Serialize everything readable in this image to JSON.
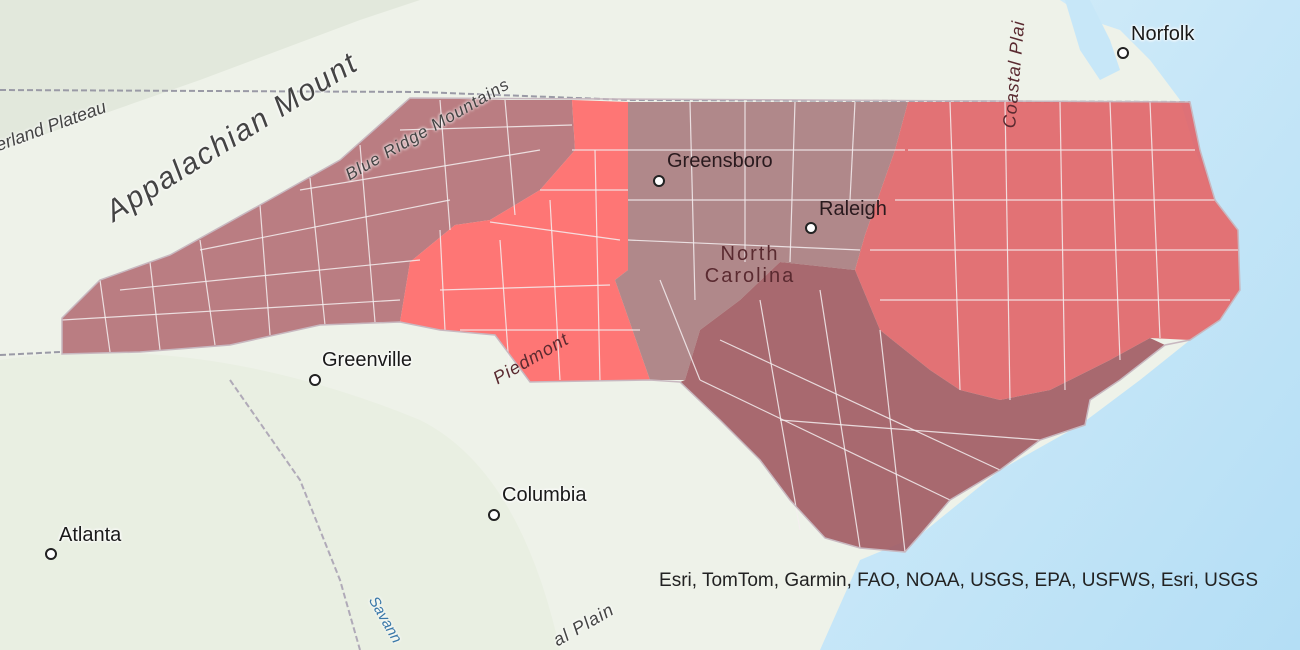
{
  "map": {
    "state_label": "North Carolina",
    "cities": {
      "norfolk": "Norfolk",
      "greensboro": "Greensboro",
      "raleigh": "Raleigh",
      "greenville": "Greenville",
      "columbia": "Columbia",
      "atlanta": "Atlanta"
    },
    "regions": {
      "appalachian": "Appalachian Mount",
      "blue_ridge": "Blue Ridge Mountains",
      "cumberland": "erland Plateau",
      "piedmont": "Piedmont",
      "coastal_plain_north": "Coastal Plai",
      "coastal_plain_south": "al Plain",
      "savannah": "Savann"
    },
    "attribution": "Esri, TomTom, Garmin, FAO, NOAA, USGS, EPA, USFWS, Esri, USGS",
    "colors": {
      "mountains": "#b06870",
      "foothills": "#ff6868",
      "triad": "#a87c80",
      "east": "#e06468",
      "south_coast": "#a05a62",
      "ocean": "#bfe4f7",
      "land": "#eef2e9"
    }
  }
}
